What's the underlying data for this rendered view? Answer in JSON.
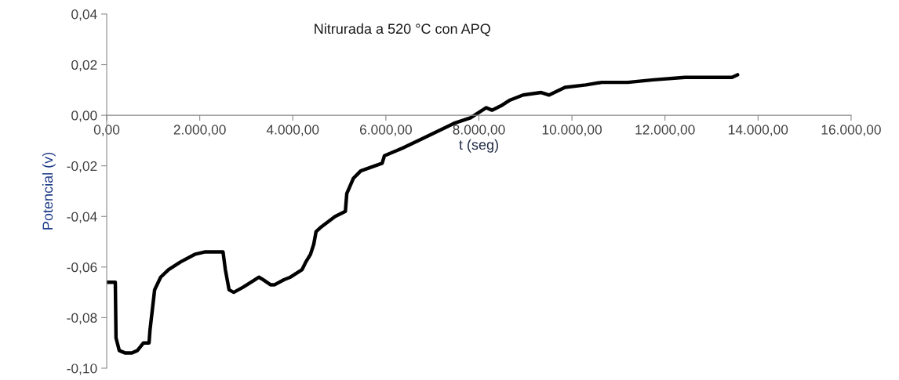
{
  "chart_data": {
    "type": "line",
    "title": "Nitrurada a 520 °C con APQ",
    "xlabel": "t (seg)",
    "ylabel": "Potencial (v)",
    "xlim": [
      0,
      16000
    ],
    "ylim": [
      -0.1,
      0.04
    ],
    "xticks": [
      {
        "value": 0,
        "label": "0,00"
      },
      {
        "value": 2000,
        "label": "2.000,00"
      },
      {
        "value": 4000,
        "label": "4.000,00"
      },
      {
        "value": 6000,
        "label": "6.000,00"
      },
      {
        "value": 8000,
        "label": "8.000,00"
      },
      {
        "value": 10000,
        "label": "10.000,00"
      },
      {
        "value": 12000,
        "label": "12.000,00"
      },
      {
        "value": 14000,
        "label": "14.000,00"
      },
      {
        "value": 16000,
        "label": "16.000,00"
      }
    ],
    "yticks": [
      {
        "value": -0.1,
        "label": "-0,10"
      },
      {
        "value": -0.08,
        "label": "-0,08"
      },
      {
        "value": -0.06,
        "label": "-0,06"
      },
      {
        "value": -0.04,
        "label": "-0,04"
      },
      {
        "value": -0.02,
        "label": "-0,02"
      },
      {
        "value": 0,
        "label": "0,00"
      },
      {
        "value": 0.02,
        "label": "0,02"
      },
      {
        "value": 0.04,
        "label": "0,04"
      }
    ],
    "grid": false,
    "legend": false,
    "marker": "none",
    "line_style": "solid",
    "series": [
      {
        "color": "#000000",
        "x": [
          0,
          150,
          185,
          200,
          270,
          400,
          540,
          660,
          790,
          910,
          930,
          1030,
          1160,
          1330,
          1585,
          1890,
          2120,
          2260,
          2430,
          2500,
          2550,
          2630,
          2730,
          2930,
          3190,
          3270,
          3360,
          3520,
          3610,
          3810,
          3950,
          4200,
          4280,
          4380,
          4450,
          4500,
          4620,
          4910,
          5130,
          5160,
          5300,
          5460,
          5920,
          5970,
          6360,
          6810,
          7490,
          7820,
          8160,
          8280,
          8500,
          8670,
          8950,
          9340,
          9510,
          9850,
          10300,
          10640,
          11200,
          11750,
          12430,
          13000,
          13440,
          13560
        ],
        "values": [
          -0.066,
          -0.066,
          -0.066,
          -0.088,
          -0.093,
          -0.094,
          -0.094,
          -0.093,
          -0.09,
          -0.09,
          -0.085,
          -0.069,
          -0.064,
          -0.061,
          -0.058,
          -0.055,
          -0.054,
          -0.054,
          -0.054,
          -0.054,
          -0.061,
          -0.069,
          -0.07,
          -0.068,
          -0.065,
          -0.064,
          -0.065,
          -0.067,
          -0.067,
          -0.065,
          -0.064,
          -0.061,
          -0.058,
          -0.055,
          -0.051,
          -0.046,
          -0.044,
          -0.04,
          -0.038,
          -0.031,
          -0.025,
          -0.022,
          -0.019,
          -0.016,
          -0.013,
          -0.009,
          -0.003,
          -0.001,
          0.003,
          0.002,
          0.004,
          0.006,
          0.008,
          0.009,
          0.008,
          0.011,
          0.012,
          0.013,
          0.013,
          0.014,
          0.015,
          0.015,
          0.015,
          0.016
        ]
      }
    ]
  }
}
